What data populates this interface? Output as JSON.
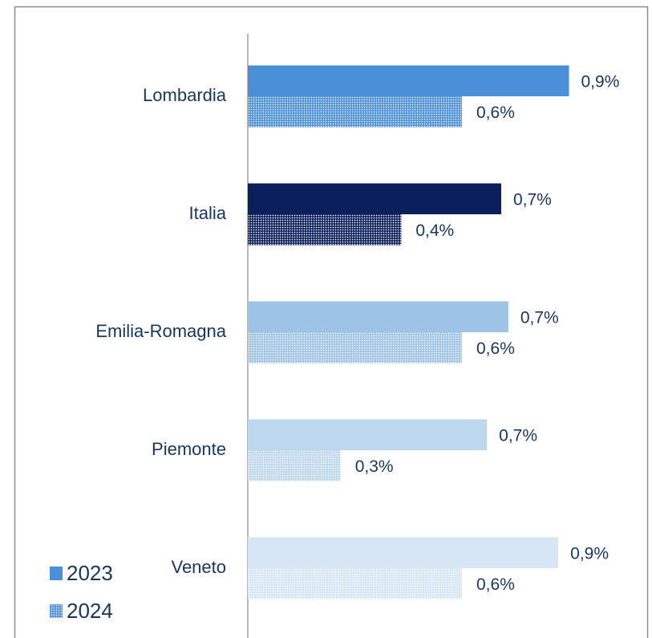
{
  "chart_data": {
    "type": "hbar",
    "categories": [
      "Lombardia",
      "Italia",
      "Emilia-Romagna",
      "Piemonte",
      "Veneto"
    ],
    "series": [
      {
        "name": "2023",
        "values": [
          0.9,
          0.71,
          0.73,
          0.67,
          0.87
        ],
        "value_labels": [
          "0,9%",
          "0,7%",
          "0,7%",
          "0,7%",
          "0,9%"
        ],
        "colors": [
          "#4a90d9",
          "#0a1f5c",
          "#9dc3e6",
          "#bdd7ee",
          "#d6e6f5"
        ],
        "pattern": "solid"
      },
      {
        "name": "2024",
        "values": [
          0.6,
          0.43,
          0.6,
          0.26,
          0.6
        ],
        "value_labels": [
          "0,6%",
          "0,4%",
          "0,6%",
          "0,3%",
          "0,6%"
        ],
        "colors": [
          "#4a90d9",
          "#0a1f5c",
          "#9dc3e6",
          "#bdd7ee",
          "#d6e6f5"
        ],
        "pattern": "dots"
      }
    ],
    "xlim": [
      0,
      1.1
    ],
    "legend": "bottom-left"
  }
}
